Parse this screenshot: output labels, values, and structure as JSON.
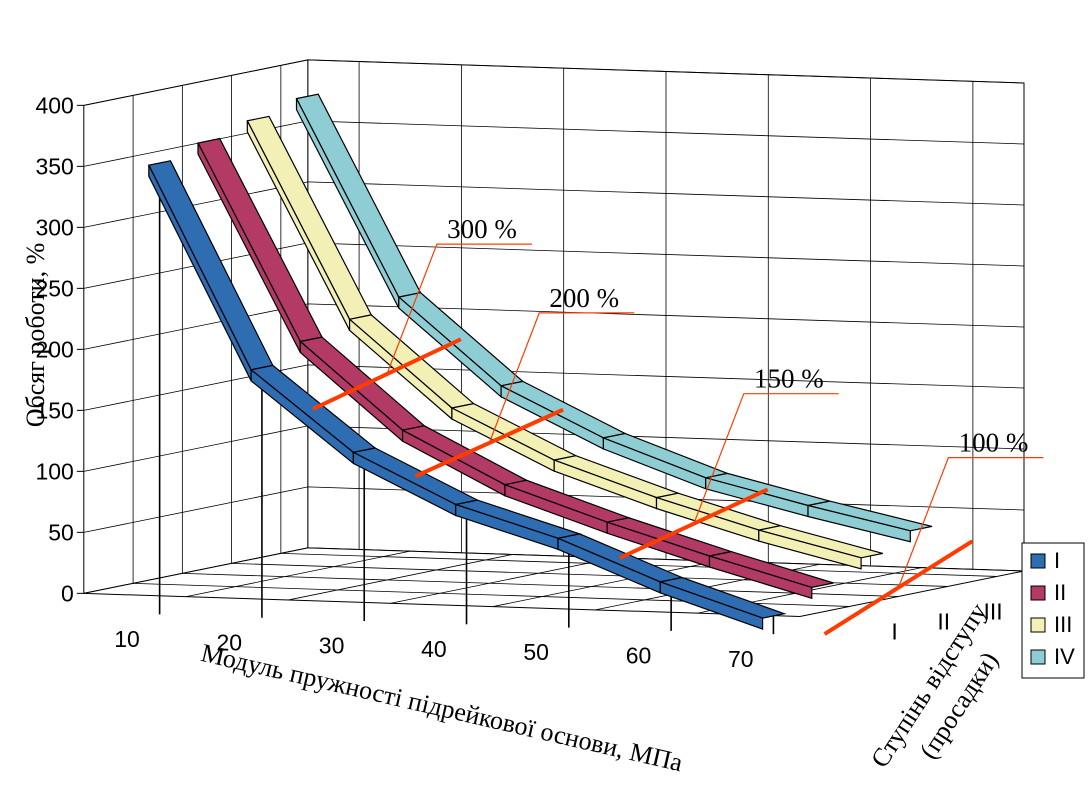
{
  "chart_data": {
    "type": "3d-ribbon-line",
    "x_categories": [
      "10",
      "20",
      "30",
      "40",
      "50",
      "60",
      "70"
    ],
    "z_categories": [
      "I",
      "II",
      "III",
      "IV"
    ],
    "y_ticks": [
      "0",
      "50",
      "100",
      "150",
      "200",
      "250",
      "300",
      "350",
      "400"
    ],
    "ylim": [
      0,
      400
    ],
    "ylabel": "Обсяг роботи, %",
    "xlabel": "Модуль пружності підрейкової основи, МПа",
    "zlabel_line1": "Ступінь відступу",
    "zlabel_line2": "(просадки)",
    "series": [
      {
        "name": "I",
        "color": "#2f6db3",
        "values": [
          350,
          185,
          120,
          80,
          55,
          22,
          -5
        ]
      },
      {
        "name": "II",
        "color": "#b23a65",
        "values": [
          360,
          200,
          130,
          88,
          60,
          35,
          12
        ]
      },
      {
        "name": "III",
        "color": "#f2f0b5",
        "values": [
          370,
          210,
          140,
          100,
          72,
          48,
          28
        ]
      },
      {
        "name": "IV",
        "color": "#8ecdd3",
        "values": [
          380,
          220,
          150,
          110,
          80,
          60,
          42
        ]
      }
    ],
    "callouts": [
      {
        "label": "300 %",
        "x": 1.5
      },
      {
        "label": "200 %",
        "x": 2.5
      },
      {
        "label": "150 %",
        "x": 4.5
      },
      {
        "label": "100 %",
        "x": 6.5
      }
    ],
    "legend_position": "right",
    "grid": true
  }
}
